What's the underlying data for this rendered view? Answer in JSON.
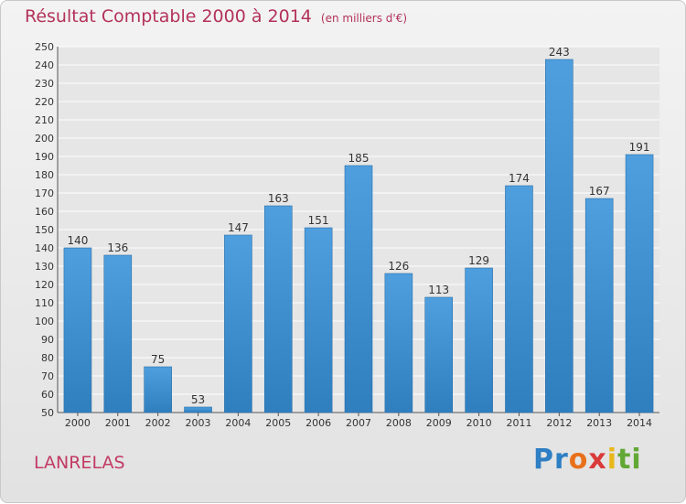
{
  "title": {
    "main": "Résultat Comptable 2000 à 2014",
    "unit": "(en milliers d'€)"
  },
  "commune": "LANRELAS",
  "logo": {
    "letters": [
      "P",
      "r",
      "o",
      "x",
      "i",
      "t",
      "i"
    ],
    "colors": [
      "#2e7fc4",
      "#2e7fc4",
      "#e8701a",
      "#d93a3a",
      "#e8b81a",
      "#62a835",
      "#62a835"
    ]
  },
  "colors": {
    "bar": "#4f9fdf",
    "bar_dark": "#2f7fbf",
    "grid": "#ffffff",
    "title": "#b3325a"
  },
  "chart_data": {
    "type": "bar",
    "categories": [
      "2000",
      "2001",
      "2002",
      "2003",
      "2004",
      "2005",
      "2006",
      "2007",
      "2008",
      "2009",
      "2010",
      "2011",
      "2012",
      "2013",
      "2014"
    ],
    "values": [
      140,
      136,
      75,
      53,
      147,
      163,
      151,
      185,
      126,
      113,
      129,
      174,
      243,
      167,
      191
    ],
    "ylim": [
      50,
      250
    ],
    "ytick_step": 10,
    "grid": true
  }
}
